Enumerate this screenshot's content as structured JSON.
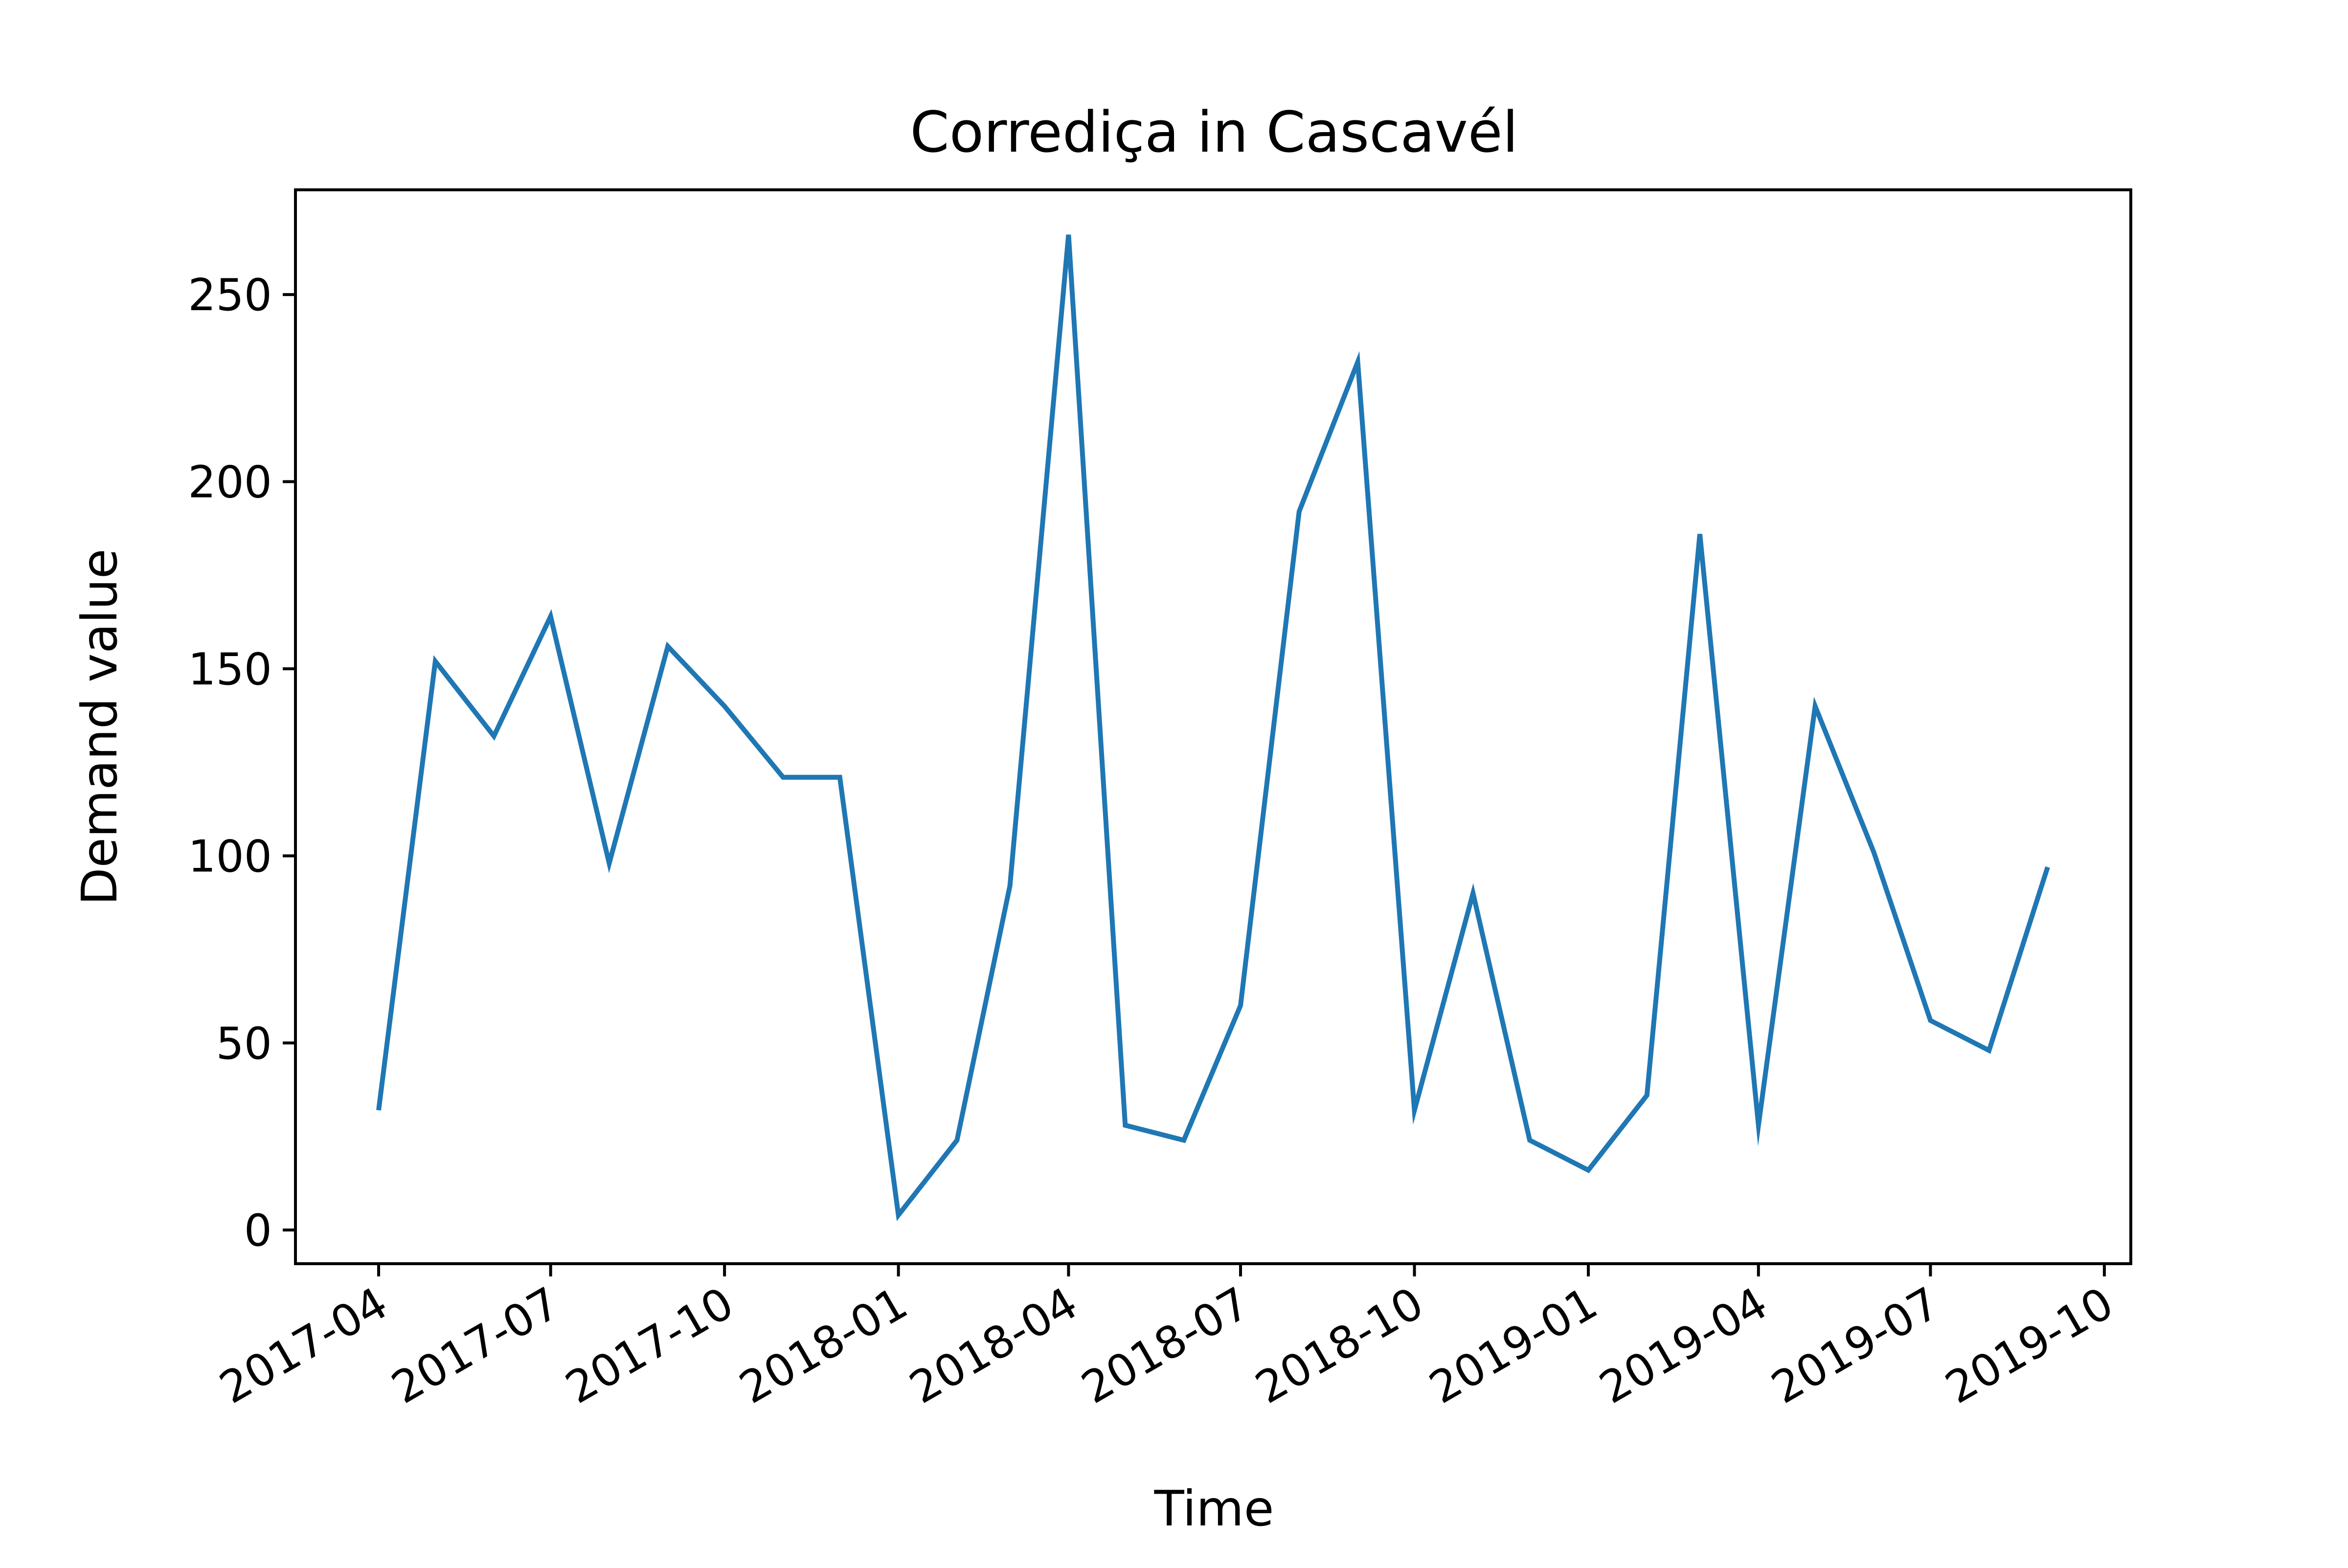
{
  "chart_data": {
    "type": "line",
    "title": "Corrediça in Cascavél",
    "xlabel": "Time",
    "ylabel": "Demand value",
    "x_tick_labels": [
      "2017-04",
      "2017-07",
      "2017-10",
      "2018-01",
      "2018-04",
      "2018-07",
      "2018-10",
      "2019-01",
      "2019-04",
      "2019-07",
      "2019-10"
    ],
    "y_tick_labels": [
      "0",
      "50",
      "100",
      "150",
      "200",
      "250"
    ],
    "y_ticks": [
      0,
      50,
      100,
      150,
      200,
      250
    ],
    "ylim": [
      -9,
      278
    ],
    "xlim": [
      "2017-02-16",
      "2019-10-15"
    ],
    "grid": false,
    "series": [
      {
        "color": "#1f77b4",
        "x": [
          "2017-04",
          "2017-05",
          "2017-06",
          "2017-07",
          "2017-08",
          "2017-09",
          "2017-10",
          "2017-11",
          "2017-12",
          "2018-01",
          "2018-02",
          "2018-03",
          "2018-04",
          "2018-05",
          "2018-06",
          "2018-07",
          "2018-08",
          "2018-09",
          "2018-10",
          "2018-11",
          "2018-12",
          "2019-01",
          "2019-02",
          "2019-03",
          "2019-04",
          "2019-05",
          "2019-06",
          "2019-07",
          "2019-08",
          "2019-09"
        ],
        "values": [
          32,
          152,
          132,
          164,
          98,
          156,
          140,
          121,
          121,
          4,
          24,
          92,
          266,
          28,
          24,
          60,
          192,
          232,
          32,
          90,
          24,
          16,
          36,
          186,
          28,
          140,
          101,
          56,
          48,
          97
        ]
      }
    ]
  }
}
